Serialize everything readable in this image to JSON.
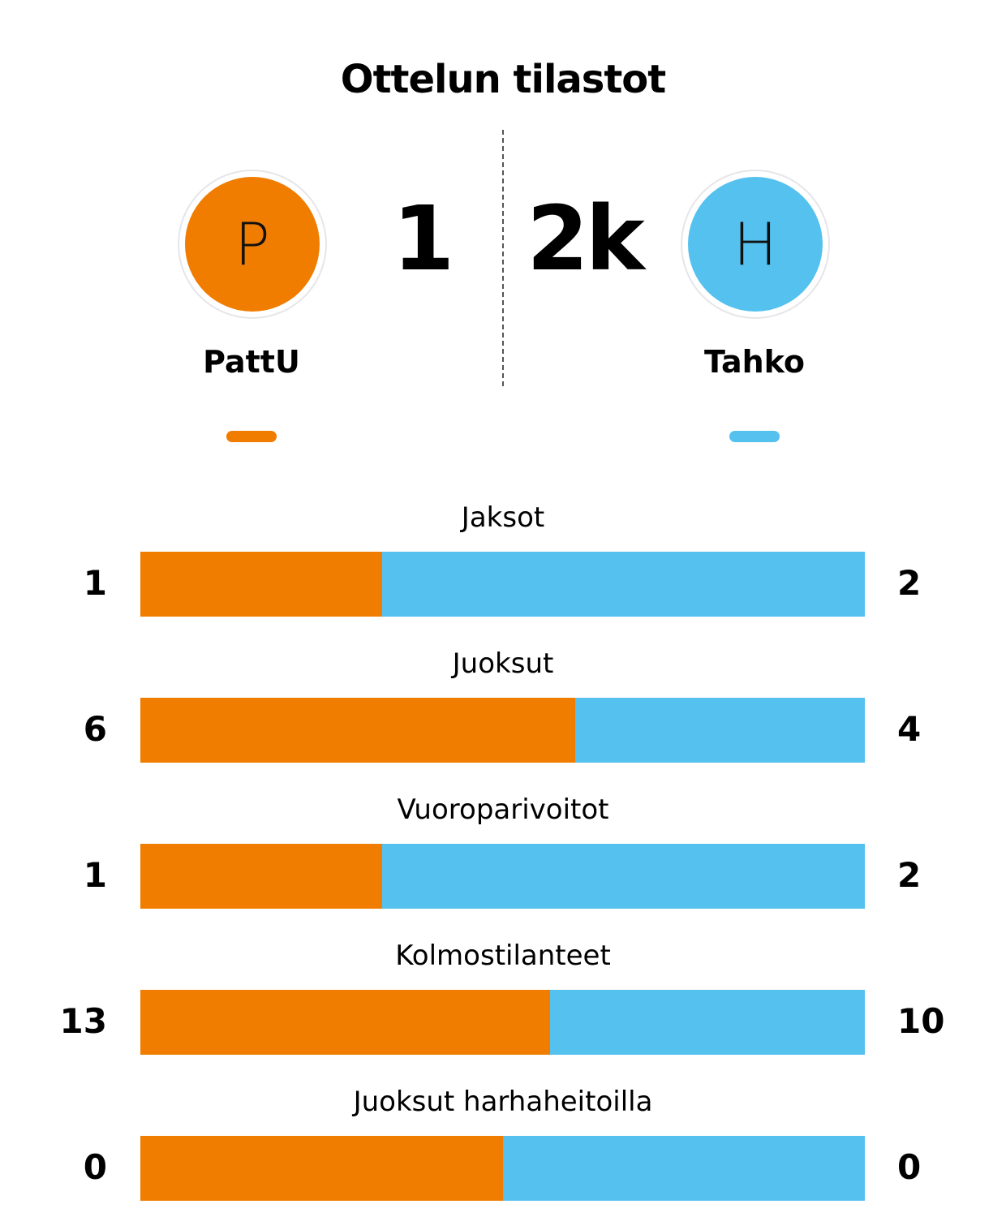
{
  "title": "Ottelun tilastot",
  "home": {
    "name": "PattU",
    "initial": "P",
    "score": "1",
    "color": "#F07D00"
  },
  "away": {
    "name": "Tahko",
    "initial": "H",
    "score": "2k",
    "color": "#55C1EF"
  },
  "stats": [
    {
      "label": "Jaksot",
      "home": 1,
      "away": 2
    },
    {
      "label": "Juoksut",
      "home": 6,
      "away": 4
    },
    {
      "label": "Vuoroparivoitot",
      "home": 1,
      "away": 2
    },
    {
      "label": "Kolmostilanteet",
      "home": 13,
      "away": 10
    },
    {
      "label": "Juoksut harhaheitoilla",
      "home": 0,
      "away": 0
    }
  ]
}
